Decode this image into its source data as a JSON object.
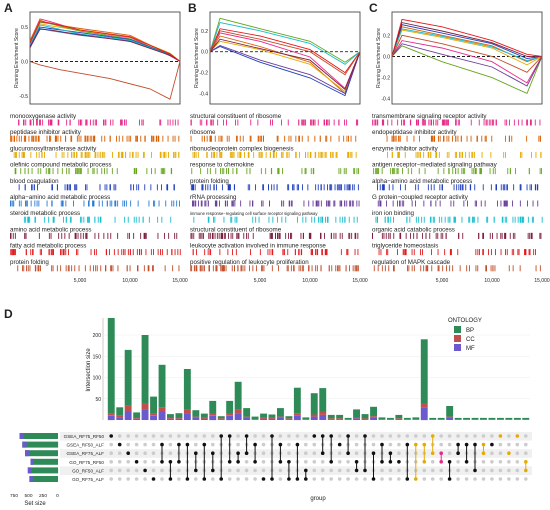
{
  "panels": [
    {
      "letter": "A",
      "ylabel": "Running Enrichment Score",
      "yticks": [
        "0.5",
        "0.0",
        "-0.5"
      ],
      "xticks": [
        "5,000",
        "10,000",
        "15,000"
      ],
      "terms": [
        "monooxygenase activity",
        "peptidase inhibitor activity",
        "glucuronosyltransferase activity",
        "olefinic compound metabolic process",
        "blood coagulation",
        "alpha−amino acid metabolic process",
        "steroid metabolic process",
        "amino acid metabolic process",
        "fatty acid metabolic process",
        "protein folding"
      ],
      "colors": [
        "#e7298a",
        "#d95f02",
        "#e6ab02",
        "#66a61e",
        "#1f3fbf",
        "#2a7bd4",
        "#17becf",
        "#7f1f3f",
        "#e31a1c",
        "#c14d2a"
      ]
    },
    {
      "letter": "B",
      "ylabel": "Running Enrichment Score",
      "yticks": [
        "0.2",
        "0.0",
        "-0.2",
        "-0.4"
      ],
      "xticks": [
        "5,000",
        "10,000",
        "15,000"
      ],
      "terms": [
        "structural constituent of ribosome",
        "ribosome",
        "ribonucleoprotein complex biogenesis",
        "response to chemokine",
        "protein folding",
        "rRNA processing",
        "immune response−regulating cell surface receptor signaling pathway",
        "structural constituent of ribosome",
        "leukocyte activation involved in immune response",
        "positive regulation of leukocyte proliferation"
      ],
      "colors": [
        "#e7298a",
        "#d95f02",
        "#e6ab02",
        "#66a61e",
        "#1f3fbf",
        "#6a3d9a",
        "#17becf",
        "#7f1f3f",
        "#e31a1c",
        "#c14d2a"
      ]
    },
    {
      "letter": "C",
      "ylabel": "Running Enrichment Score",
      "yticks": [
        "0.2",
        "0.0",
        "-0.2",
        "-0.4"
      ],
      "xticks": [
        "5,000",
        "10,000",
        "15,000"
      ],
      "terms": [
        "transmembrane signaling receptor activity",
        "endopeptidase inhibitor activity",
        "enzyme inhibitor activity",
        "antigen receptor−mediated signaling pathway",
        "alpha−amino acid metabolic process",
        "G protein−coupled receptor activity",
        "iron ion binding",
        "organic acid catabolic process",
        "triglyceride homeostasis",
        "regulation of MAPK cascade"
      ],
      "colors": [
        "#e7298a",
        "#d95f02",
        "#e6ab02",
        "#66a61e",
        "#1f3fbf",
        "#6a3d9a",
        "#17becf",
        "#7f1f3f",
        "#e31a1c",
        "#c14d2a"
      ]
    }
  ],
  "panel_d": {
    "letter": "D",
    "ylabel": "Intersection size",
    "yticks": [
      "200",
      "150",
      "100",
      "50"
    ],
    "legend_title": "ONTOLOGY",
    "legend": [
      {
        "name": "BP",
        "color": "#2e8b57"
      },
      {
        "name": "CC",
        "color": "#c0504d"
      },
      {
        "name": "MF",
        "color": "#6a5acd"
      }
    ],
    "sets": [
      "GSEA_RF75_RF50",
      "GSEA_RF50_ALF",
      "GSEA_RF75_ALF",
      "GO_RF75_RF50",
      "GO_RF50_ALF",
      "GO_RF75_ALF"
    ],
    "set_size_label": "Set size",
    "set_size_ticks": [
      "750",
      "500",
      "250",
      "0"
    ],
    "xlabel": "group"
  },
  "chart_data": [
    {
      "type": "line",
      "title": "A",
      "ylabel": "Running Enrichment Score",
      "xlim": [
        0,
        15000
      ],
      "series": [
        {
          "name": "monooxygenase activity",
          "x": [
            0,
            1000,
            2000,
            5000,
            10000,
            14000,
            15000
          ],
          "y": [
            0.3,
            0.62,
            0.58,
            0.45,
            0.35,
            0.08,
            0
          ]
        },
        {
          "name": "peptidase inhibitor activity",
          "x": [
            0,
            1000,
            2000,
            5000,
            10000,
            14000,
            15000
          ],
          "y": [
            0.3,
            0.6,
            0.55,
            0.48,
            0.38,
            0.1,
            0
          ]
        },
        {
          "name": "glucuronosyltransferase activity",
          "x": [
            0,
            1000,
            2000,
            5000,
            10000,
            14000,
            15000
          ],
          "y": [
            0.25,
            0.55,
            0.52,
            0.45,
            0.36,
            0.12,
            0
          ]
        },
        {
          "name": "olefinic compound metabolic process",
          "x": [
            0,
            1000,
            2000,
            5000,
            10000,
            14000,
            15000
          ],
          "y": [
            0.28,
            0.57,
            0.55,
            0.44,
            0.33,
            0.1,
            0
          ]
        },
        {
          "name": "blood coagulation",
          "x": [
            0,
            1000,
            2000,
            5000,
            10000,
            14000,
            15000
          ],
          "y": [
            0.22,
            0.5,
            0.48,
            0.42,
            0.32,
            0.1,
            0
          ]
        },
        {
          "name": "alpha−amino acid metabolic process",
          "x": [
            0,
            1000,
            2000,
            5000,
            10000,
            14000,
            15000
          ],
          "y": [
            0.2,
            0.48,
            0.45,
            0.38,
            0.3,
            0.1,
            0
          ]
        },
        {
          "name": "steroid metabolic process",
          "x": [
            0,
            1000,
            2000,
            5000,
            10000,
            14000,
            15000
          ],
          "y": [
            0.25,
            0.53,
            0.5,
            0.4,
            0.31,
            0.09,
            0
          ]
        },
        {
          "name": "amino acid metabolic process",
          "x": [
            0,
            1000,
            2000,
            5000,
            10000,
            14000,
            15000
          ],
          "y": [
            0.2,
            0.47,
            0.46,
            0.39,
            0.29,
            0.09,
            0
          ]
        },
        {
          "name": "fatty acid metabolic process",
          "x": [
            0,
            1000,
            2000,
            5000,
            10000,
            14000,
            15000
          ],
          "y": [
            0.27,
            0.58,
            0.56,
            0.46,
            0.36,
            0.11,
            0
          ]
        },
        {
          "name": "protein folding",
          "x": [
            0,
            1000,
            3000,
            8000,
            12000,
            14000,
            15000
          ],
          "y": [
            0,
            -0.05,
            -0.12,
            -0.25,
            -0.4,
            -0.55,
            0
          ]
        }
      ]
    },
    {
      "type": "line",
      "title": "B",
      "ylabel": "Running Enrichment Score",
      "xlim": [
        0,
        15000
      ],
      "series": [
        {
          "name": "structural constituent of ribosome",
          "x": [
            0,
            1000,
            5000,
            10000,
            13500,
            15000
          ],
          "y": [
            0,
            0.18,
            0.1,
            -0.05,
            -0.35,
            0
          ]
        },
        {
          "name": "ribosome",
          "x": [
            0,
            1000,
            5000,
            10000,
            13500,
            15000
          ],
          "y": [
            0,
            0.15,
            0.05,
            -0.1,
            -0.4,
            0
          ]
        },
        {
          "name": "ribonucleoprotein complex biogenesis",
          "x": [
            0,
            1000,
            5000,
            10000,
            13500,
            15000
          ],
          "y": [
            0,
            0.1,
            0.02,
            -0.12,
            -0.38,
            0
          ]
        },
        {
          "name": "response to chemokine",
          "x": [
            0,
            1000,
            5000,
            10000,
            13500,
            15000
          ],
          "y": [
            0,
            0.32,
            0.22,
            0.1,
            -0.1,
            0
          ]
        },
        {
          "name": "protein folding",
          "x": [
            0,
            1000,
            5000,
            10000,
            13500,
            15000
          ],
          "y": [
            0,
            0.05,
            -0.1,
            -0.25,
            -0.42,
            0
          ]
        },
        {
          "name": "rRNA processing",
          "x": [
            0,
            1000,
            5000,
            10000,
            13500,
            15000
          ],
          "y": [
            0,
            0.06,
            -0.08,
            -0.22,
            -0.4,
            0
          ]
        },
        {
          "name": "immune response−regulating cell surface receptor signaling pathway",
          "x": [
            0,
            1000,
            5000,
            10000,
            13500,
            15000
          ],
          "y": [
            0,
            0.28,
            0.2,
            0.08,
            -0.12,
            0
          ]
        },
        {
          "name": "structural constituent of ribosome",
          "x": [
            0,
            1000,
            5000,
            10000,
            13500,
            15000
          ],
          "y": [
            0,
            0.12,
            0.03,
            -0.08,
            -0.36,
            0
          ]
        },
        {
          "name": "leukocyte activation involved in immune response",
          "x": [
            0,
            1000,
            5000,
            10000,
            13500,
            15000
          ],
          "y": [
            0,
            0.22,
            0.15,
            0.02,
            -0.2,
            0
          ]
        },
        {
          "name": "positive regulation of leukocyte proliferation",
          "x": [
            0,
            1000,
            5000,
            10000,
            13500,
            15000
          ],
          "y": [
            0,
            0.2,
            0.12,
            0.0,
            -0.22,
            0
          ]
        }
      ]
    },
    {
      "type": "line",
      "title": "C",
      "ylabel": "Running Enrichment Score",
      "xlim": [
        0,
        15000
      ],
      "series": [
        {
          "name": "transmembrane signaling receptor activity",
          "x": [
            0,
            1000,
            5000,
            10000,
            13500,
            15000
          ],
          "y": [
            0,
            0.15,
            0.08,
            -0.05,
            -0.25,
            0
          ]
        },
        {
          "name": "endopeptidase inhibitor activity",
          "x": [
            0,
            1000,
            5000,
            10000,
            13500,
            15000
          ],
          "y": [
            0,
            0.28,
            0.2,
            0.1,
            -0.05,
            0
          ]
        },
        {
          "name": "enzyme inhibitor activity",
          "x": [
            0,
            1000,
            5000,
            10000,
            13500,
            15000
          ],
          "y": [
            0,
            0.25,
            0.18,
            0.08,
            -0.08,
            0
          ]
        },
        {
          "name": "antigen receptor−mediated signaling pathway",
          "x": [
            0,
            1000,
            5000,
            10000,
            13500,
            15000
          ],
          "y": [
            0,
            0.1,
            -0.05,
            -0.2,
            -0.35,
            0
          ]
        },
        {
          "name": "alpha−amino acid metabolic process",
          "x": [
            0,
            1000,
            5000,
            10000,
            13500,
            15000
          ],
          "y": [
            0,
            0.3,
            0.22,
            0.12,
            -0.02,
            0
          ]
        },
        {
          "name": "G protein−coupled receptor activity",
          "x": [
            0,
            1000,
            5000,
            10000,
            13500,
            15000
          ],
          "y": [
            0,
            0.12,
            0.02,
            -0.1,
            -0.28,
            0
          ]
        },
        {
          "name": "iron ion binding",
          "x": [
            0,
            1000,
            5000,
            10000,
            13500,
            15000
          ],
          "y": [
            0,
            0.26,
            0.19,
            0.09,
            -0.04,
            0
          ]
        },
        {
          "name": "organic acid catabolic process",
          "x": [
            0,
            1000,
            5000,
            10000,
            13500,
            15000
          ],
          "y": [
            0,
            0.32,
            0.24,
            0.13,
            0.0,
            0
          ]
        },
        {
          "name": "triglyceride homeostasis",
          "x": [
            0,
            1000,
            5000,
            10000,
            13500,
            15000
          ],
          "y": [
            0,
            0.35,
            0.28,
            0.15,
            0.02,
            0
          ]
        },
        {
          "name": "regulation of MAPK cascade",
          "x": [
            0,
            1000,
            5000,
            10000,
            13500,
            15000
          ],
          "y": [
            0,
            0.2,
            0.12,
            0.0,
            -0.15,
            0
          ]
        }
      ]
    },
    {
      "type": "bar",
      "title": "D",
      "ylabel": "Intersection size",
      "xlabel": "group",
      "ylim": [
        0,
        240
      ],
      "stacked": true,
      "series": [
        {
          "name": "BP",
          "values": [
            225,
            20,
            130,
            12,
            160,
            40,
            100,
            8,
            10,
            95,
            15,
            10,
            30,
            5,
            30,
            65,
            20,
            6,
            10,
            8,
            20,
            5,
            60,
            4,
            50,
            55,
            8,
            8,
            3,
            18,
            10,
            22,
            4,
            3,
            8,
            3,
            4,
            150,
            3,
            3,
            25,
            3,
            3,
            3,
            3,
            3,
            3,
            3,
            3,
            3
          ]
        },
        {
          "name": "CC",
          "values": [
            5,
            5,
            15,
            3,
            15,
            5,
            10,
            3,
            3,
            10,
            3,
            2,
            5,
            2,
            5,
            10,
            3,
            1,
            2,
            2,
            3,
            2,
            6,
            1,
            5,
            8,
            2,
            2,
            1,
            3,
            2,
            4,
            1,
            1,
            2,
            1,
            1,
            10,
            1,
            1,
            3,
            1,
            1,
            1,
            1,
            1,
            1,
            1,
            1,
            1
          ]
        },
        {
          "name": "MF",
          "values": [
            10,
            5,
            20,
            3,
            25,
            10,
            20,
            3,
            3,
            15,
            5,
            3,
            10,
            2,
            10,
            15,
            5,
            1,
            3,
            3,
            5,
            2,
            10,
            1,
            8,
            12,
            2,
            2,
            1,
            4,
            2,
            5,
            1,
            1,
            2,
            1,
            1,
            30,
            1,
            1,
            5,
            1,
            1,
            1,
            1,
            1,
            1,
            1,
            1,
            1
          ]
        }
      ],
      "sets": [
        "GSEA_RF75_RF50",
        "GSEA_RF50_ALF",
        "GSEA_RF75_ALF",
        "GO_RF75_RF50",
        "GO_RF50_ALF",
        "GO_RF75_ALF"
      ],
      "set_sizes": [
        700,
        650,
        600,
        500,
        550,
        520
      ]
    }
  ]
}
